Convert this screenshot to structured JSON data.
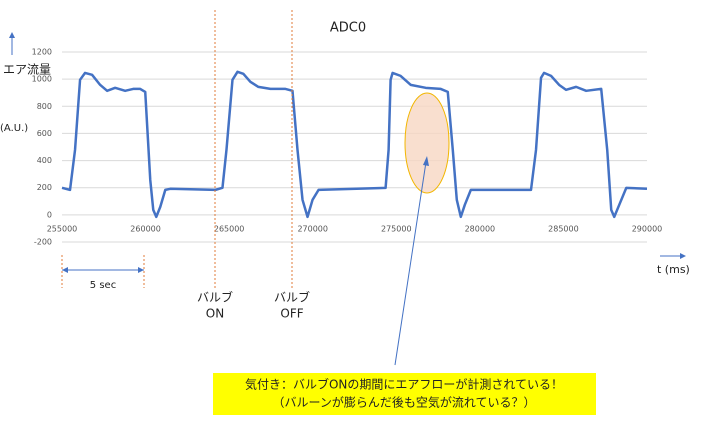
{
  "chart_data": {
    "type": "line",
    "title": "ADC0",
    "y_label": "エア流量",
    "y_unit": "(A.U.)",
    "x_label": "t (ms)",
    "xlim": [
      255000,
      290000
    ],
    "xticks": [
      255000,
      260000,
      265000,
      270000,
      275000,
      280000,
      285000,
      290000
    ],
    "ylim": [
      -200,
      1200
    ],
    "yticks": [
      -200,
      0,
      200,
      400,
      600,
      800,
      1000,
      1200
    ],
    "grid": true,
    "series": [
      {
        "color": "#4472c4",
        "x": [
          255000,
          255480,
          255780,
          256080,
          256380,
          256800,
          257280,
          257700,
          258180,
          258780,
          259260,
          259680,
          259980,
          260280,
          260460,
          260640,
          260880,
          261180,
          261480,
          264180,
          264600,
          264840,
          265200,
          265500,
          265850,
          266270,
          266750,
          267470,
          268370,
          268790,
          269090,
          269390,
          269690,
          269990,
          270350,
          274360,
          274540,
          274660,
          274780,
          275260,
          275860,
          276760,
          277660,
          278080,
          278380,
          278620,
          278860,
          279100,
          279460,
          283060,
          283360,
          283660,
          283840,
          284260,
          284740,
          285160,
          285760,
          286360,
          287260,
          287620,
          287860,
          288040,
          288340,
          288760,
          290000
        ],
        "values": [
          199,
          184,
          479,
          995,
          1046,
          1032,
          958,
          914,
          936,
          914,
          928,
          928,
          906,
          258,
          37,
          -15,
          59,
          184,
          192,
          184,
          199,
          479,
          995,
          1054,
          1039,
          980,
          943,
          928,
          928,
          914,
          479,
          111,
          -15,
          111,
          184,
          199,
          479,
          995,
          1046,
          1024,
          958,
          936,
          928,
          906,
          479,
          111,
          -15,
          74,
          184,
          184,
          479,
          1010,
          1046,
          1024,
          958,
          921,
          943,
          914,
          928,
          479,
          37,
          -15,
          74,
          199,
          192
        ]
      }
    ],
    "annotations": {
      "span": "5 sec",
      "valve_on": [
        "バルブ",
        "ON"
      ],
      "valve_off": [
        "バルブ",
        "OFF"
      ],
      "note": [
        "気付き：バルブONの期間にエアフローが計測されている！",
        "（バルーンが膨らんだ後も空気が流れている？）"
      ]
    }
  }
}
